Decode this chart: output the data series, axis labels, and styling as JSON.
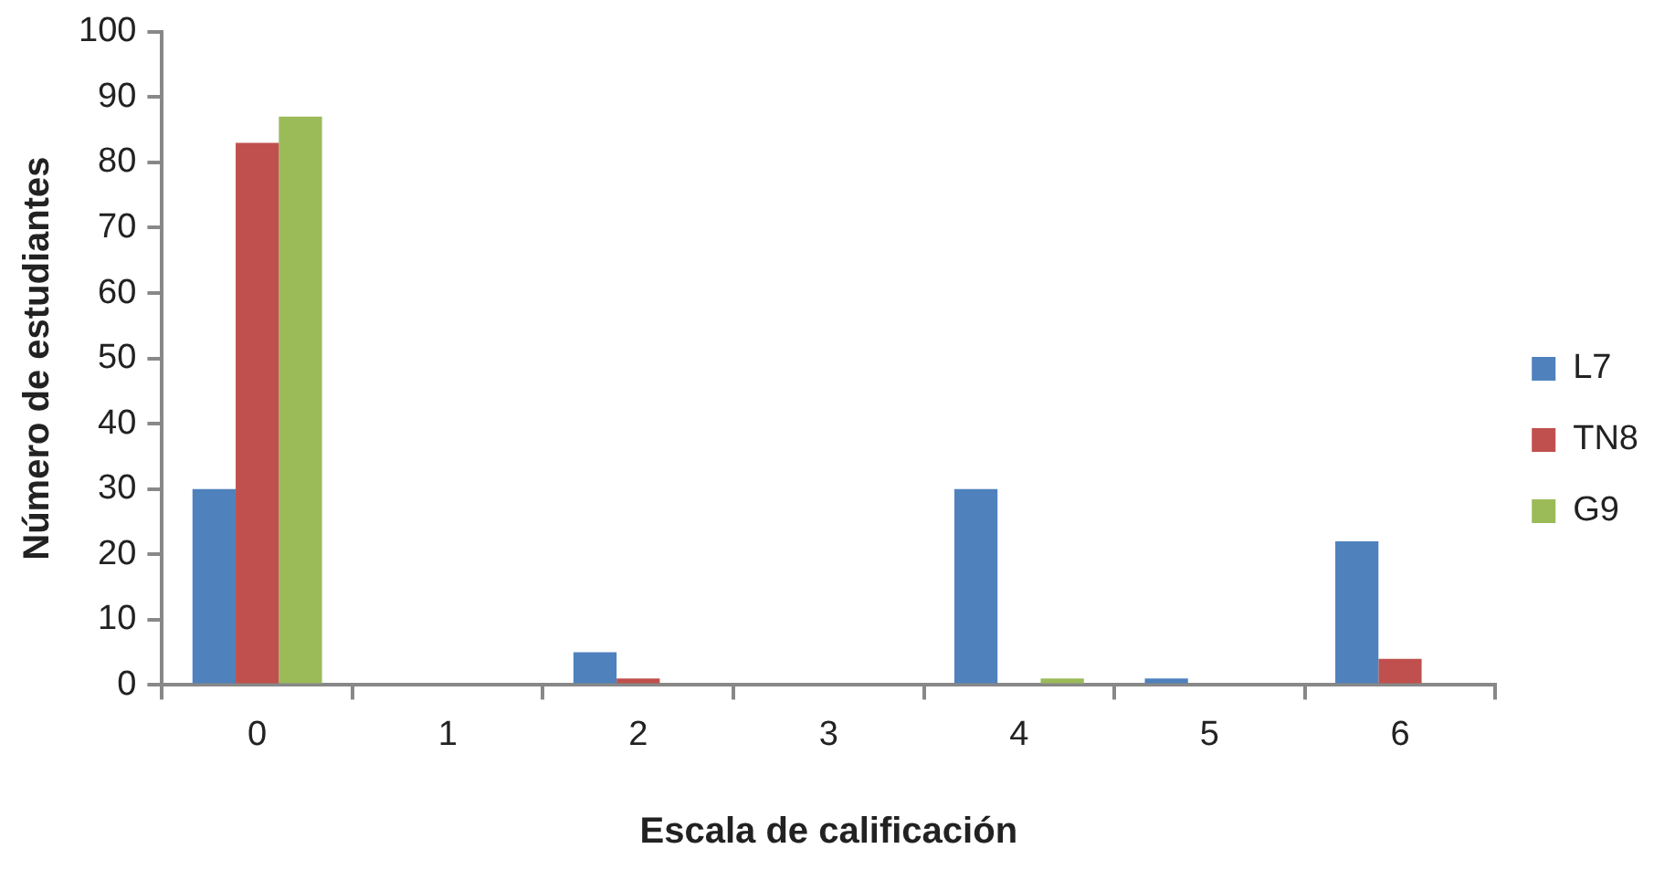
{
  "chart_data": {
    "type": "bar",
    "xlabel": "Escala de calificación",
    "ylabel": "Número de estudiantes",
    "categories": [
      "0",
      "1",
      "2",
      "3",
      "4",
      "5",
      "6"
    ],
    "series": [
      {
        "name": "L7",
        "color": "#4f81bd",
        "values": [
          30,
          0,
          5,
          0,
          30,
          1,
          22
        ]
      },
      {
        "name": "TN8",
        "color": "#c0504d",
        "values": [
          83,
          0,
          1,
          0,
          0,
          0,
          4
        ]
      },
      {
        "name": "G9",
        "color": "#9bbb59",
        "values": [
          87,
          0,
          0,
          0,
          1,
          0,
          0
        ]
      }
    ],
    "ylim": [
      0,
      100
    ],
    "yticks": [
      0,
      10,
      20,
      30,
      40,
      50,
      60,
      70,
      80,
      90,
      100
    ],
    "grid": false,
    "legend": "right"
  }
}
